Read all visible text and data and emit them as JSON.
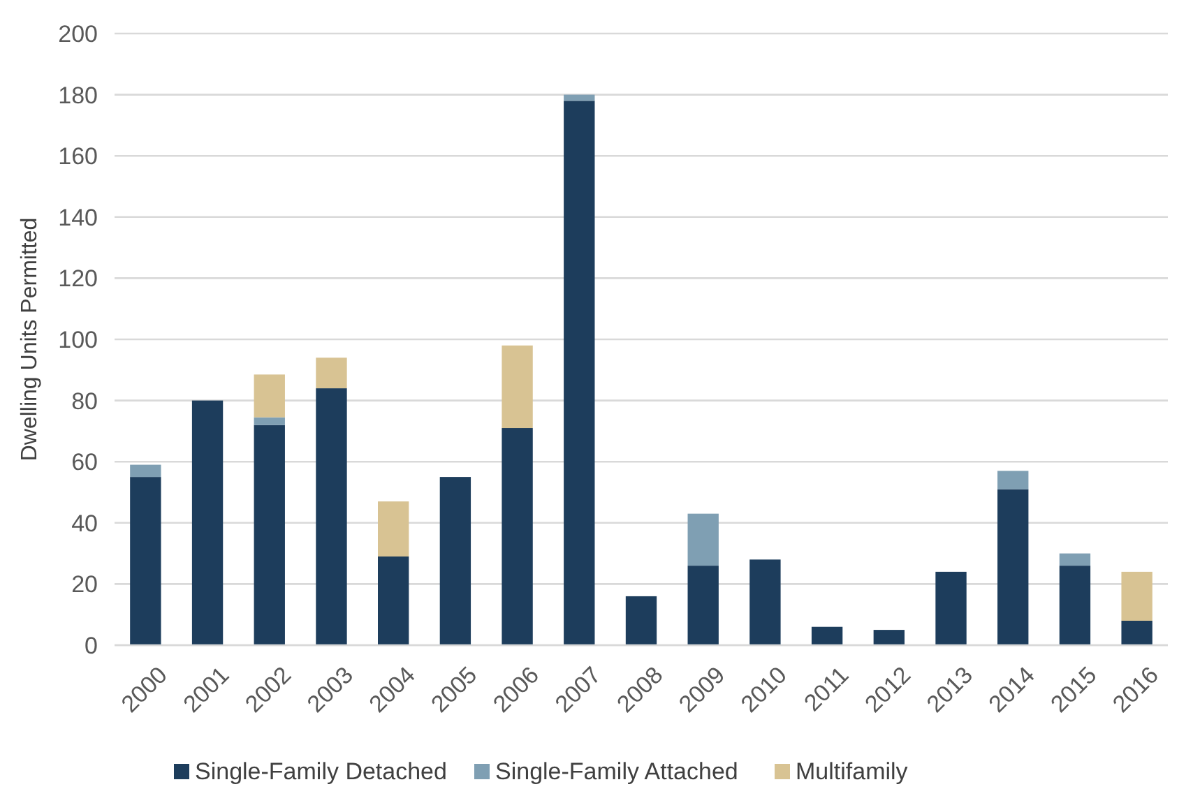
{
  "chart_data": {
    "type": "bar",
    "stacked": true,
    "ylabel": "Dwelling Units Permitted",
    "categories": [
      "2000",
      "2001",
      "2002",
      "2003",
      "2004",
      "2005",
      "2006",
      "2007",
      "2008",
      "2009",
      "2010",
      "2011",
      "2012",
      "2013",
      "2014",
      "2015",
      "2016"
    ],
    "series": [
      {
        "name": "Single-Family Detached",
        "color": "#1d3d5c",
        "values": [
          55,
          80,
          72,
          84,
          29,
          55,
          71,
          178,
          16,
          26,
          28,
          6,
          5,
          24,
          51,
          26,
          8
        ]
      },
      {
        "name": "Single-Family Attached",
        "color": "#7f9fb3",
        "values": [
          4,
          0,
          2.5,
          0,
          0,
          0,
          0,
          2,
          0,
          17,
          0,
          0,
          0,
          0,
          6,
          4,
          0
        ]
      },
      {
        "name": "Multifamily",
        "color": "#d8c393",
        "values": [
          0,
          0,
          14,
          10,
          18,
          0,
          27,
          0,
          0,
          0,
          0,
          0,
          0,
          0,
          0,
          0,
          16
        ]
      }
    ],
    "ylim": [
      0,
      200
    ],
    "yticks": [
      0,
      20,
      40,
      60,
      80,
      100,
      120,
      140,
      160,
      180,
      200
    ],
    "grid": "y",
    "legend": "bottom"
  }
}
